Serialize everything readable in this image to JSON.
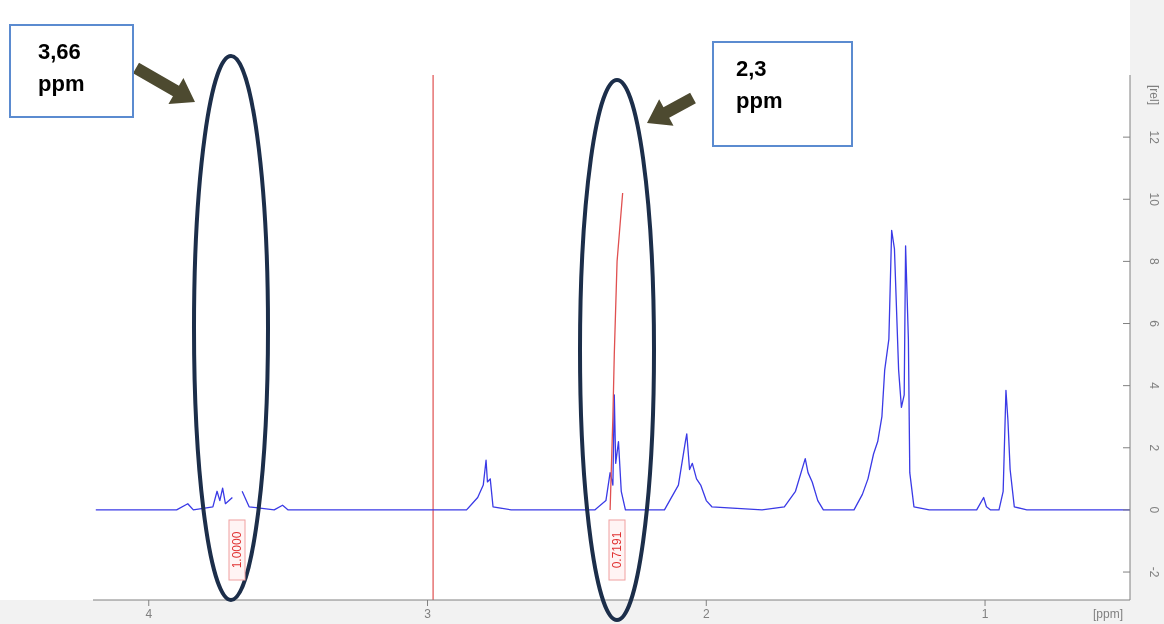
{
  "chart_data": {
    "type": "line",
    "xlabel": "[ppm]",
    "ylabel": "[rel]",
    "xlim": [
      4.2,
      0.48
    ],
    "ylim": [
      -2.9,
      14
    ],
    "xticks": [
      4,
      3,
      2,
      1
    ],
    "yticks": [
      -2,
      0,
      2,
      4,
      6,
      8,
      10,
      12
    ],
    "series": [
      {
        "color": "#3a3ae6",
        "x": [
          4.19,
          3.9,
          3.86,
          3.84,
          3.77,
          3.755,
          3.745,
          3.735,
          3.725,
          3.7,
          3.685,
          3.675,
          3.665,
          3.64,
          3.55,
          3.52,
          3.5,
          3.0,
          2.86,
          2.82,
          2.8,
          2.79,
          2.785,
          2.775,
          2.765,
          2.7,
          2.4,
          2.36,
          2.345,
          2.335,
          2.33,
          2.325,
          2.315,
          2.305,
          2.29,
          2.15,
          2.1,
          2.075,
          2.07,
          2.06,
          2.05,
          2.035,
          2.02,
          2.0,
          1.98,
          1.8,
          1.72,
          1.68,
          1.645,
          1.635,
          1.62,
          1.6,
          1.58,
          1.47,
          1.44,
          1.42,
          1.4,
          1.385,
          1.37,
          1.36,
          1.345,
          1.335,
          1.325,
          1.31,
          1.3,
          1.29,
          1.285,
          1.275,
          1.27,
          1.255,
          1.2,
          1.03,
          1.005,
          0.995,
          0.98,
          0.95,
          0.935,
          0.925,
          0.918,
          0.91,
          0.895,
          0.85,
          0.48
        ],
        "values": [
          0,
          0,
          0.2,
          0,
          0.1,
          0.6,
          0.3,
          0.7,
          0.2,
          0.4,
          null,
          null,
          0.6,
          0.1,
          0,
          0.15,
          0,
          0,
          0,
          0.4,
          0.8,
          1.6,
          0.9,
          1.0,
          0.1,
          0,
          0,
          0.3,
          1.2,
          0.8,
          3.7,
          1.5,
          2.2,
          0.6,
          0,
          0,
          0.8,
          2.2,
          2.45,
          1.3,
          1.5,
          1.0,
          0.8,
          0.3,
          0.1,
          0,
          0.1,
          0.6,
          1.65,
          1.2,
          0.9,
          0.3,
          0,
          0,
          0.5,
          1.0,
          1.8,
          2.2,
          3.0,
          4.5,
          5.5,
          9.0,
          8.4,
          4.5,
          3.3,
          3.7,
          8.5,
          5.5,
          1.2,
          0.1,
          0,
          0,
          0.4,
          0.1,
          0,
          0,
          0.6,
          3.85,
          2.9,
          1.3,
          0.1,
          0,
          0
        ]
      },
      {
        "color": "#e05050",
        "x": [
          2.345,
          2.335,
          2.33,
          2.32,
          2.3
        ],
        "values": [
          0,
          3,
          5,
          8,
          10.2
        ]
      }
    ],
    "ref_lines": [
      {
        "axis": "x",
        "value": 2.98,
        "color": "#e05050"
      }
    ],
    "annotations": [
      "3,66 ppm",
      "2,3 ppm",
      "1.0000",
      "0.7191"
    ]
  }
}
